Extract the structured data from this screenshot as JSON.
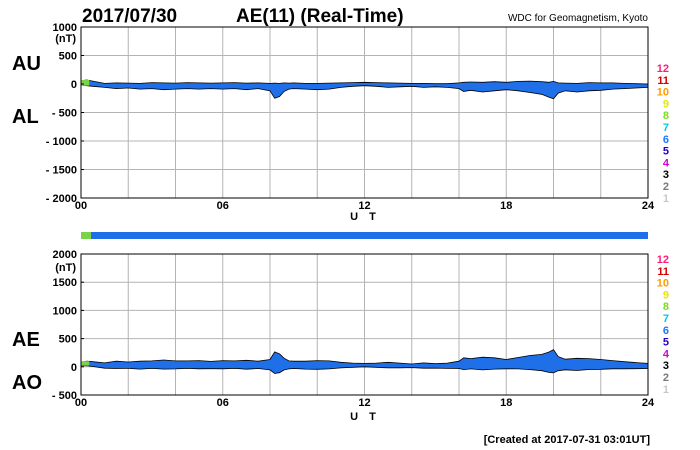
{
  "header": {
    "date": "2017/07/30",
    "title": "AE(11) (Real-Time)",
    "source": "WDC for Geomagnetism, Kyoto",
    "created": "[Created at 2017-07-31 03:01UT]"
  },
  "colors": {
    "fill": "#1f6fe8",
    "grid": "#b4b4b4",
    "frame": "#000000",
    "bar_start": "#7bd34a"
  },
  "station_legend": [
    {
      "label": "12",
      "color": "#ff1e7a"
    },
    {
      "label": "11",
      "color": "#d40000"
    },
    {
      "label": "10",
      "color": "#ff9a00"
    },
    {
      "label": "9",
      "color": "#e6e600"
    },
    {
      "label": "8",
      "color": "#7adf1e"
    },
    {
      "label": "7",
      "color": "#00c8e6"
    },
    {
      "label": "6",
      "color": "#1e78ff"
    },
    {
      "label": "5",
      "color": "#2a00c8"
    },
    {
      "label": "4",
      "color": "#d400d4"
    },
    {
      "label": "3",
      "color": "#000000"
    },
    {
      "label": "2",
      "color": "#7a7a7a"
    },
    {
      "label": "1",
      "color": "#c8c8c8"
    }
  ],
  "chart_data": [
    {
      "type": "area",
      "panel": "AU/AL",
      "series_labels": [
        "AU",
        "AL"
      ],
      "unit": "(nT)",
      "xlabel": "U T",
      "xlim": [
        0,
        24
      ],
      "ylim": [
        -2000,
        1000
      ],
      "x_ticks": [
        0,
        6,
        12,
        18,
        24
      ],
      "x_tick_labels": [
        "00",
        "06",
        "12",
        "18",
        "24"
      ],
      "y_ticks": [
        1000,
        500,
        0,
        -500,
        -1000,
        -1500,
        -2000
      ],
      "y_tick_labels": [
        "1000",
        "500",
        "0",
        "- 500",
        "- 1000",
        "- 1500",
        "- 2000"
      ],
      "grid": true,
      "x": [
        0,
        0.25,
        0.5,
        1,
        1.5,
        2,
        2.5,
        3,
        3.5,
        4,
        4.5,
        5,
        5.5,
        6,
        6.5,
        7,
        7.5,
        8,
        8.2,
        8.4,
        8.6,
        8.8,
        9,
        9.5,
        10,
        10.5,
        11,
        11.5,
        12,
        12.5,
        13,
        13.5,
        14,
        14.5,
        15,
        15.5,
        16,
        16.2,
        16.5,
        17,
        17.5,
        18,
        18.5,
        19,
        19.5,
        19.8,
        20,
        20.2,
        20.5,
        21,
        21.5,
        22,
        22.5,
        23,
        23.5,
        24
      ],
      "series": [
        {
          "values": [
            60,
            70,
            50,
            10,
            20,
            15,
            10,
            25,
            20,
            15,
            25,
            20,
            15,
            20,
            25,
            15,
            20,
            10,
            15,
            10,
            20,
            15,
            20,
            10,
            10,
            15,
            20,
            25,
            30,
            25,
            20,
            15,
            10,
            10,
            5,
            5,
            20,
            30,
            35,
            30,
            40,
            30,
            45,
            50,
            40,
            30,
            45,
            20,
            15,
            10,
            25,
            20,
            20,
            10,
            5,
            0
          ]
        },
        {
          "values": [
            -20,
            -30,
            -40,
            -60,
            -80,
            -70,
            -90,
            -80,
            -100,
            -90,
            -80,
            -90,
            -80,
            -90,
            -80,
            -100,
            -80,
            -120,
            -250,
            -220,
            -130,
            -90,
            -80,
            -90,
            -100,
            -90,
            -60,
            -40,
            -30,
            -40,
            -60,
            -50,
            -40,
            -60,
            -50,
            -60,
            -80,
            -130,
            -110,
            -140,
            -120,
            -100,
            -120,
            -150,
            -180,
            -230,
            -260,
            -160,
            -120,
            -140,
            -120,
            -110,
            -90,
            -80,
            -70,
            -60
          ]
        }
      ]
    },
    {
      "type": "area",
      "panel": "AE/AO",
      "series_labels": [
        "AE",
        "AO"
      ],
      "unit": "(nT)",
      "xlabel": "U T",
      "xlim": [
        0,
        24
      ],
      "ylim": [
        -500,
        2000
      ],
      "x_ticks": [
        0,
        6,
        12,
        18,
        24
      ],
      "x_tick_labels": [
        "00",
        "06",
        "12",
        "18",
        "24"
      ],
      "y_ticks": [
        2000,
        1500,
        1000,
        500,
        0,
        -500
      ],
      "y_tick_labels": [
        "2000",
        "1500",
        "1000",
        "500",
        "0",
        "- 500"
      ],
      "grid": true,
      "x": [
        0,
        0.25,
        0.5,
        1,
        1.5,
        2,
        2.5,
        3,
        3.5,
        4,
        4.5,
        5,
        5.5,
        6,
        6.5,
        7,
        7.5,
        8,
        8.2,
        8.4,
        8.6,
        8.8,
        9,
        9.5,
        10,
        10.5,
        11,
        11.5,
        12,
        12.5,
        13,
        13.5,
        14,
        14.5,
        15,
        15.5,
        16,
        16.2,
        16.5,
        17,
        17.5,
        18,
        18.5,
        19,
        19.5,
        19.8,
        20,
        20.2,
        20.5,
        21,
        21.5,
        22,
        22.5,
        23,
        23.5,
        24
      ],
      "series": [
        {
          "values": [
            80,
            100,
            90,
            70,
            100,
            85,
            100,
            105,
            120,
            105,
            105,
            110,
            95,
            110,
            105,
            115,
            100,
            130,
            265,
            230,
            150,
            105,
            100,
            100,
            110,
            105,
            80,
            65,
            60,
            65,
            80,
            65,
            50,
            70,
            55,
            65,
            100,
            160,
            145,
            170,
            160,
            130,
            165,
            200,
            220,
            260,
            305,
            180,
            135,
            150,
            145,
            130,
            110,
            90,
            75,
            60
          ]
        },
        {
          "values": [
            20,
            20,
            5,
            -25,
            -30,
            -28,
            -40,
            -28,
            -40,
            -38,
            -28,
            -35,
            -33,
            -35,
            -28,
            -43,
            -30,
            -55,
            -118,
            -105,
            -55,
            -38,
            -30,
            -40,
            -45,
            -38,
            -20,
            -8,
            0,
            -8,
            -20,
            -18,
            -15,
            -25,
            -23,
            -28,
            -30,
            -50,
            -38,
            -55,
            -40,
            -35,
            -38,
            -50,
            -70,
            -100,
            -108,
            -70,
            -53,
            -65,
            -48,
            -45,
            -35,
            -35,
            -33,
            -30
          ]
        }
      ]
    }
  ]
}
